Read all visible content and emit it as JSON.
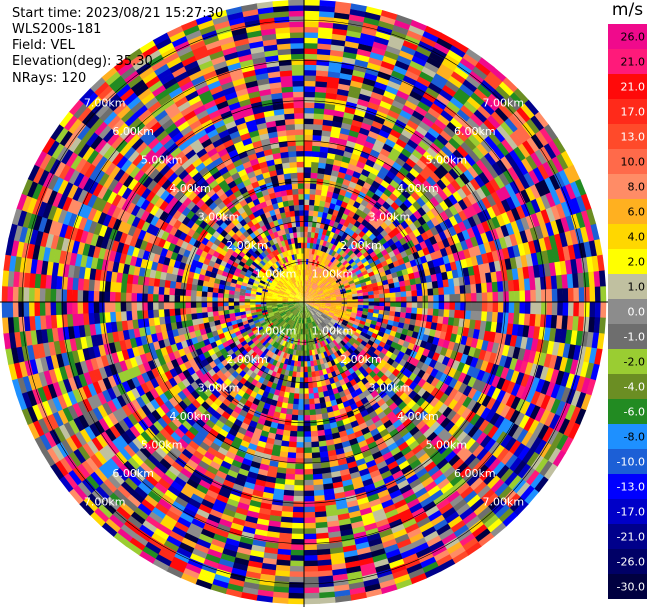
{
  "info": {
    "start_time": "Start time: 2023/08/21 15:27:30",
    "site": "WLS200s-181",
    "field": "Field: VEL",
    "elevation": "Elevation(deg): 35.30",
    "nrays": "NRays: 120"
  },
  "colorbar": {
    "unit": "m/s",
    "bins": [
      {
        "label": "26.0",
        "color": "#f00a8c"
      },
      {
        "label": "21.0",
        "color": "#ff1a7a"
      },
      {
        "label": "21.0",
        "color": "#ff0a0a"
      },
      {
        "label": "17.0",
        "color": "#ff2a1a"
      },
      {
        "label": "13.0",
        "color": "#ff4a2a"
      },
      {
        "label": "10.0",
        "color": "#ff6a4a"
      },
      {
        "label": "8.0",
        "color": "#ff8c66"
      },
      {
        "label": "6.0",
        "color": "#ffb020"
      },
      {
        "label": "4.0",
        "color": "#ffd700"
      },
      {
        "label": "2.0",
        "color": "#ffff00"
      },
      {
        "label": "1.0",
        "color": "#c0c0a0"
      },
      {
        "label": "0.0",
        "color": "#8c8c8c"
      },
      {
        "label": "-1.0",
        "color": "#6e6e6e"
      },
      {
        "label": "-2.0",
        "color": "#9acd32"
      },
      {
        "label": "-4.0",
        "color": "#6b8e23"
      },
      {
        "label": "-6.0",
        "color": "#228b22"
      },
      {
        "label": "-8.0",
        "color": "#1e90ff"
      },
      {
        "label": "-10.0",
        "color": "#1c5fd6"
      },
      {
        "label": "-13.0",
        "color": "#0000ff"
      },
      {
        "label": "-17.0",
        "color": "#0000c8"
      },
      {
        "label": "-21.0",
        "color": "#00008b"
      },
      {
        "label": "-26.0",
        "color": "#000066"
      },
      {
        "label": "-30.0",
        "color": "#000040"
      }
    ]
  },
  "chart_data": {
    "type": "heatmap",
    "description_type": "PPI radar velocity (polar)",
    "field": "VEL",
    "unit": "m/s",
    "rays": 120,
    "range_rings_km": [
      1,
      2,
      3,
      4,
      5,
      6,
      7
    ],
    "ring_labels": [
      "1.00km",
      "2.00km",
      "3.00km",
      "4.00km",
      "5.00km",
      "6.00km",
      "7.00km"
    ],
    "color_scale_values": [
      26.0,
      21.0,
      17.0,
      13.0,
      10.0,
      8.0,
      6.0,
      4.0,
      2.0,
      1.0,
      0.0,
      -1.0,
      -2.0,
      -4.0,
      -6.0,
      -8.0,
      -10.0,
      -13.0,
      -17.0,
      -21.0,
      -26.0,
      -30.0
    ],
    "near_range_pattern": {
      "north_east_sector": "positive (orange/yellow, ~4 to 8 m/s)",
      "south_sector": "negative (green, ~-4 to -6 m/s)"
    },
    "far_range": "noise (random colors across full scale)"
  }
}
